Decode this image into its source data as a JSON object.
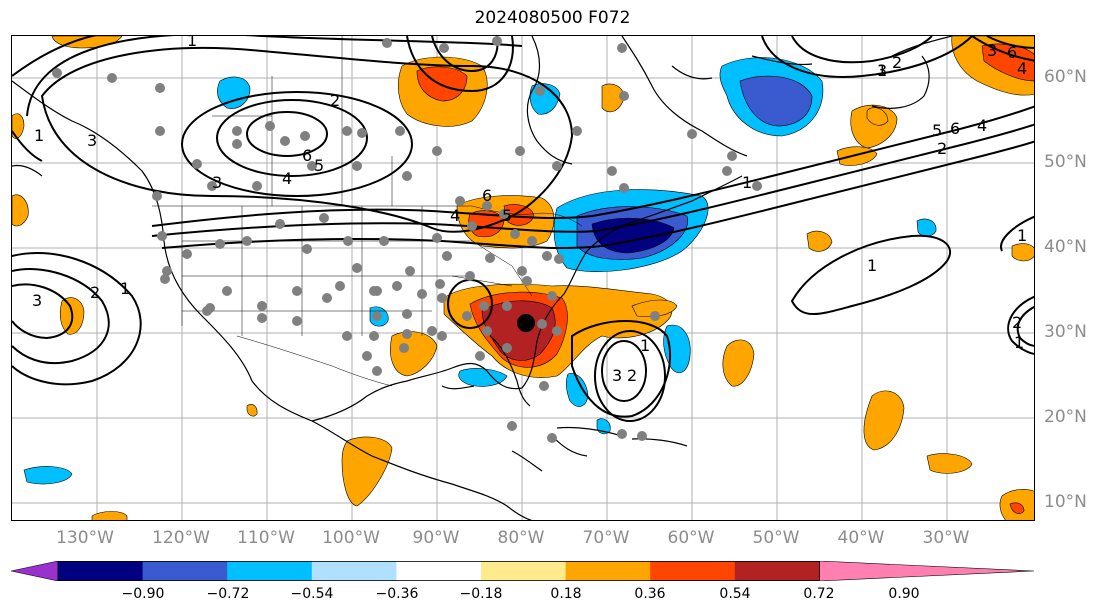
{
  "title": "2024080500 F072",
  "lon_labels": [
    "130°W",
    "120°W",
    "110°W",
    "100°W",
    "90°W",
    "80°W",
    "70°W",
    "60°W",
    "50°W",
    "40°W",
    "30°W"
  ],
  "lat_labels": [
    "60°N",
    "50°N",
    "40°N",
    "30°N",
    "20°N",
    "10°N"
  ],
  "colorbar": {
    "tick_labels": [
      "−0.90",
      "−0.72",
      "−0.54",
      "−0.36",
      "−0.18",
      "0.18",
      "0.36",
      "0.54",
      "0.72",
      "0.90"
    ],
    "colors": [
      "#9932cc",
      "#000080",
      "#3a5bd0",
      "#00bfff",
      "#b0e0ff",
      "#ffffff",
      "#ffeb8c",
      "#ffa500",
      "#ff4500",
      "#b22222",
      "#ff80b0"
    ]
  },
  "contour_labels": [
    "1",
    "2",
    "3",
    "4",
    "5",
    "6",
    "2",
    "1",
    "3",
    "4",
    "5",
    "6",
    "1",
    "1",
    "2",
    "3",
    "1",
    "2",
    "3",
    "1",
    "1",
    "2",
    "6",
    "5",
    "4",
    "2",
    "1"
  ],
  "marker": "black-dot"
}
